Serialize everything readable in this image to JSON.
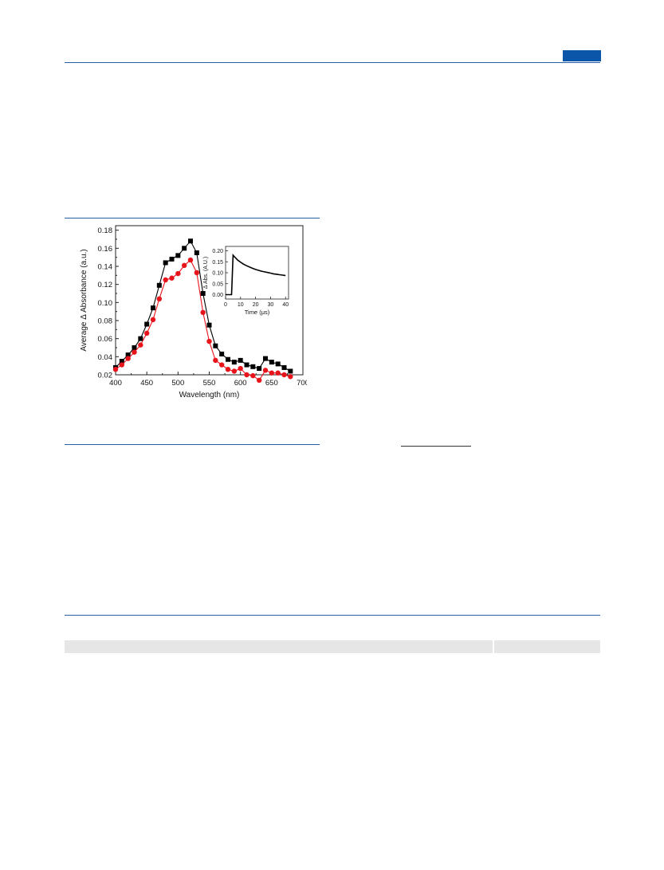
{
  "chart_data": [
    {
      "type": "line",
      "xlabel": "Wavelength (nm)",
      "ylabel": "Average Δ Absorbance (a.u.)",
      "xlim": [
        400,
        700
      ],
      "ylim": [
        0.02,
        0.185
      ],
      "xticks": [
        400,
        450,
        500,
        550,
        600,
        650,
        700
      ],
      "yticks": [
        0.02,
        0.04,
        0.06,
        0.08,
        0.1,
        0.12,
        0.14,
        0.16,
        0.18
      ],
      "ytick_labels": [
        "0.02",
        "0.04",
        "0.06",
        "0.08",
        "0.10",
        "0.12",
        "0.14",
        "0.16",
        "0.18"
      ],
      "legend": "none",
      "grid": false,
      "x": [
        400,
        410,
        420,
        430,
        440,
        450,
        460,
        470,
        480,
        490,
        500,
        510,
        520,
        530,
        540,
        550,
        560,
        570,
        580,
        590,
        600,
        610,
        620,
        630,
        640,
        650,
        660,
        670,
        680
      ],
      "series": [
        {
          "marker": "square",
          "color": "#000000",
          "values": [
            0.028,
            0.035,
            0.042,
            0.05,
            0.06,
            0.076,
            0.094,
            0.119,
            0.144,
            0.148,
            0.152,
            0.16,
            0.168,
            0.155,
            0.11,
            0.075,
            0.052,
            0.043,
            0.037,
            0.034,
            0.036,
            0.031,
            0.029,
            0.027,
            0.038,
            0.034,
            0.032,
            0.028,
            0.024
          ]
        },
        {
          "marker": "circle",
          "color": "#e8141c",
          "values": [
            0.026,
            0.031,
            0.038,
            0.045,
            0.053,
            0.066,
            0.081,
            0.104,
            0.125,
            0.127,
            0.132,
            0.141,
            0.147,
            0.133,
            0.089,
            0.057,
            0.036,
            0.031,
            0.026,
            0.024,
            0.027,
            0.02,
            0.019,
            0.014,
            0.025,
            0.022,
            0.022,
            0.02,
            0.018
          ]
        }
      ]
    },
    {
      "type": "line",
      "inset": true,
      "xlabel": "Time (μs)",
      "ylabel": "Δ Abs. (A.U.)",
      "xlim": [
        0,
        42
      ],
      "ylim": [
        -0.02,
        0.22
      ],
      "xticks": [
        0,
        10,
        20,
        30,
        40
      ],
      "yticks": [
        0.0,
        0.05,
        0.1,
        0.15,
        0.2
      ],
      "ytick_labels": [
        "0.00",
        "0.05",
        "0.10",
        "0.15",
        "0.20"
      ],
      "grid": false,
      "x": [
        0,
        1,
        2,
        3,
        4,
        5,
        6,
        7,
        8,
        10,
        12,
        14,
        16,
        18,
        20,
        22,
        24,
        26,
        28,
        30,
        32,
        34,
        36,
        38,
        40
      ],
      "series": [
        {
          "color": "#000000",
          "values": [
            0.0,
            0.0,
            0.0,
            0.0,
            0.0,
            0.18,
            0.172,
            0.165,
            0.158,
            0.148,
            0.139,
            0.132,
            0.126,
            0.12,
            0.115,
            0.111,
            0.107,
            0.104,
            0.101,
            0.098,
            0.095,
            0.093,
            0.091,
            0.089,
            0.087
          ]
        }
      ]
    }
  ]
}
